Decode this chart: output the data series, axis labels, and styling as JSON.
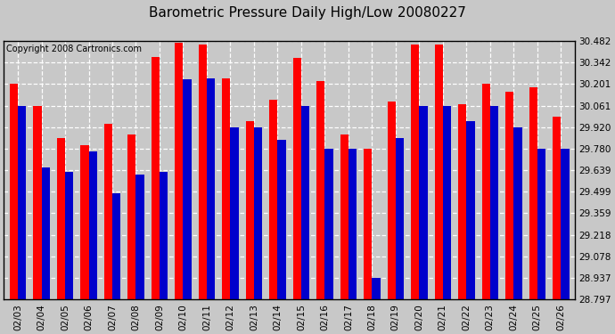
{
  "title": "Barometric Pressure Daily High/Low 20080227",
  "copyright": "Copyright 2008 Cartronics.com",
  "dates": [
    "02/03",
    "02/04",
    "02/05",
    "02/06",
    "02/07",
    "02/08",
    "02/09",
    "02/10",
    "02/11",
    "02/12",
    "02/13",
    "02/14",
    "02/15",
    "02/16",
    "02/17",
    "02/18",
    "02/19",
    "02/20",
    "02/21",
    "02/22",
    "02/23",
    "02/24",
    "02/25",
    "02/26"
  ],
  "highs": [
    30.201,
    30.061,
    29.85,
    29.8,
    29.94,
    29.87,
    30.38,
    30.47,
    30.46,
    30.24,
    29.96,
    30.1,
    30.37,
    30.22,
    29.87,
    29.78,
    30.09,
    30.46,
    30.46,
    30.07,
    30.201,
    30.15,
    30.18,
    29.99
  ],
  "lows": [
    30.061,
    29.66,
    29.63,
    29.76,
    29.49,
    29.61,
    29.63,
    30.23,
    30.24,
    29.92,
    29.92,
    29.84,
    30.061,
    29.78,
    29.78,
    28.937,
    29.85,
    30.061,
    30.061,
    29.96,
    30.061,
    29.92,
    29.78,
    29.78
  ],
  "ylim_min": 28.797,
  "ylim_max": 30.482,
  "yticks": [
    28.797,
    28.937,
    29.078,
    29.218,
    29.359,
    29.499,
    29.639,
    29.78,
    29.92,
    30.061,
    30.201,
    30.342,
    30.482
  ],
  "high_color": "#ff0000",
  "low_color": "#0000cc",
  "bg_color": "#c8c8c8",
  "title_fontsize": 11,
  "copyright_fontsize": 7,
  "bar_width": 0.35,
  "figwidth": 6.9,
  "figheight": 3.75,
  "dpi": 100
}
